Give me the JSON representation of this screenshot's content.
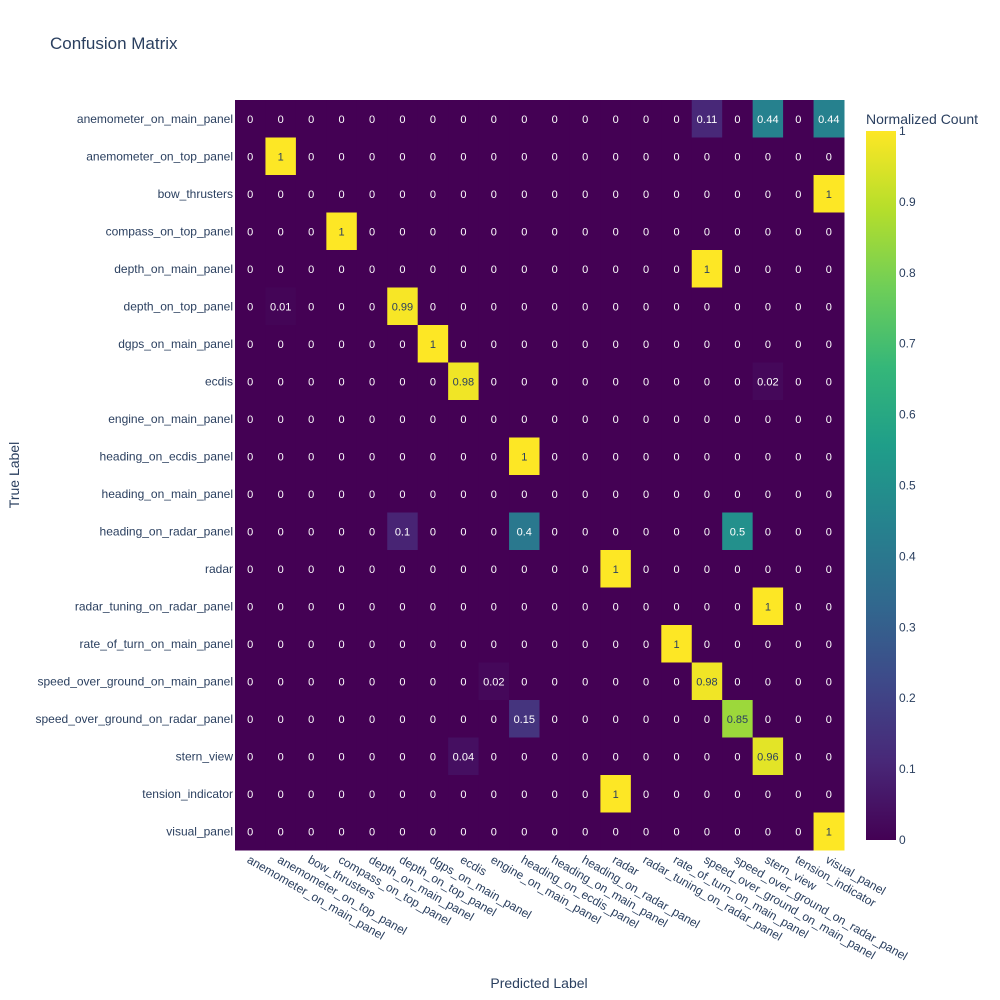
{
  "chart_data": {
    "type": "heatmap",
    "title": "Confusion Matrix",
    "xlabel": "Predicted Label",
    "ylabel": "True Label",
    "colorbar_title": "Normalized Count",
    "colorscale": "viridis",
    "zlim": [
      0,
      1
    ],
    "colorbar_ticks": [
      "0",
      "0.1",
      "0.2",
      "0.3",
      "0.4",
      "0.5",
      "0.6",
      "0.7",
      "0.8",
      "0.9",
      "1"
    ],
    "labels": [
      "anemometer_on_main_panel",
      "anemometer_on_top_panel",
      "bow_thrusters",
      "compass_on_top_panel",
      "depth_on_main_panel",
      "depth_on_top_panel",
      "dgps_on_main_panel",
      "ecdis",
      "engine_on_main_panel",
      "heading_on_ecdis_panel",
      "heading_on_main_panel",
      "heading_on_radar_panel",
      "radar",
      "radar_tuning_on_radar_panel",
      "rate_of_turn_on_main_panel",
      "speed_over_ground_on_main_panel",
      "speed_over_ground_on_radar_panel",
      "stern_view",
      "tension_indicator",
      "visual_panel"
    ],
    "z": [
      [
        0,
        0,
        0,
        0,
        0,
        0,
        0,
        0,
        0,
        0,
        0,
        0,
        0,
        0,
        0,
        0.11,
        0,
        0.44,
        0,
        0.44
      ],
      [
        0,
        1,
        0,
        0,
        0,
        0,
        0,
        0,
        0,
        0,
        0,
        0,
        0,
        0,
        0,
        0,
        0,
        0,
        0,
        0
      ],
      [
        0,
        0,
        0,
        0,
        0,
        0,
        0,
        0,
        0,
        0,
        0,
        0,
        0,
        0,
        0,
        0,
        0,
        0,
        0,
        1
      ],
      [
        0,
        0,
        0,
        1,
        0,
        0,
        0,
        0,
        0,
        0,
        0,
        0,
        0,
        0,
        0,
        0,
        0,
        0,
        0,
        0
      ],
      [
        0,
        0,
        0,
        0,
        0,
        0,
        0,
        0,
        0,
        0,
        0,
        0,
        0,
        0,
        0,
        1,
        0,
        0,
        0,
        0
      ],
      [
        0,
        0.01,
        0,
        0,
        0,
        0.99,
        0,
        0,
        0,
        0,
        0,
        0,
        0,
        0,
        0,
        0,
        0,
        0,
        0,
        0
      ],
      [
        0,
        0,
        0,
        0,
        0,
        0,
        1,
        0,
        0,
        0,
        0,
        0,
        0,
        0,
        0,
        0,
        0,
        0,
        0,
        0
      ],
      [
        0,
        0,
        0,
        0,
        0,
        0,
        0,
        0.98,
        0,
        0,
        0,
        0,
        0,
        0,
        0,
        0,
        0,
        0.02,
        0,
        0
      ],
      [
        0,
        0,
        0,
        0,
        0,
        0,
        0,
        0,
        0,
        0,
        0,
        0,
        0,
        0,
        0,
        0,
        0,
        0,
        0,
        0
      ],
      [
        0,
        0,
        0,
        0,
        0,
        0,
        0,
        0,
        0,
        1,
        0,
        0,
        0,
        0,
        0,
        0,
        0,
        0,
        0,
        0
      ],
      [
        0,
        0,
        0,
        0,
        0,
        0,
        0,
        0,
        0,
        0,
        0,
        0,
        0,
        0,
        0,
        0,
        0,
        0,
        0,
        0
      ],
      [
        0,
        0,
        0,
        0,
        0,
        0.1,
        0,
        0,
        0,
        0.4,
        0,
        0,
        0,
        0,
        0,
        0,
        0.5,
        0,
        0,
        0
      ],
      [
        0,
        0,
        0,
        0,
        0,
        0,
        0,
        0,
        0,
        0,
        0,
        0,
        1,
        0,
        0,
        0,
        0,
        0,
        0,
        0
      ],
      [
        0,
        0,
        0,
        0,
        0,
        0,
        0,
        0,
        0,
        0,
        0,
        0,
        0,
        0,
        0,
        0,
        0,
        1,
        0,
        0
      ],
      [
        0,
        0,
        0,
        0,
        0,
        0,
        0,
        0,
        0,
        0,
        0,
        0,
        0,
        0,
        1,
        0,
        0,
        0,
        0,
        0
      ],
      [
        0,
        0,
        0,
        0,
        0,
        0,
        0,
        0,
        0.02,
        0,
        0,
        0,
        0,
        0,
        0,
        0.98,
        0,
        0,
        0,
        0
      ],
      [
        0,
        0,
        0,
        0,
        0,
        0,
        0,
        0,
        0,
        0.15,
        0,
        0,
        0,
        0,
        0,
        0,
        0.85,
        0,
        0,
        0
      ],
      [
        0,
        0,
        0,
        0,
        0,
        0,
        0,
        0.04,
        0,
        0,
        0,
        0,
        0,
        0,
        0,
        0,
        0,
        0.96,
        0,
        0
      ],
      [
        0,
        0,
        0,
        0,
        0,
        0,
        0,
        0,
        0,
        0,
        0,
        0,
        1,
        0,
        0,
        0,
        0,
        0,
        0,
        0
      ],
      [
        0,
        0,
        0,
        0,
        0,
        0,
        0,
        0,
        0,
        0,
        0,
        0,
        0,
        0,
        0,
        0,
        0,
        0,
        0,
        1
      ]
    ]
  }
}
